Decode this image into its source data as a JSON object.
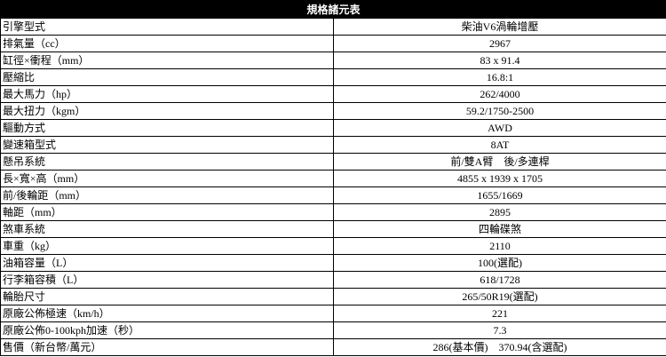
{
  "table": {
    "title": "規格諸元表",
    "rows": [
      [
        "引擎型式",
        "柴油V6渦輪增壓"
      ],
      [
        "排氣量（cc）",
        "2967"
      ],
      [
        "缸徑×衝程（mm）",
        "83 x 91.4"
      ],
      [
        "壓縮比",
        "16.8:1"
      ],
      [
        "最大馬力（hp）",
        "262/4000"
      ],
      [
        "最大扭力（kgm）",
        "59.2/1750-2500"
      ],
      [
        "驅動方式",
        "AWD"
      ],
      [
        "變速箱型式",
        "8AT"
      ],
      [
        "懸吊系統",
        "前/雙A臂　後/多連桿"
      ],
      [
        "長×寬×高（mm）",
        "4855 x 1939 x 1705"
      ],
      [
        "前/後輪距（mm）",
        "1655/1669"
      ],
      [
        "軸距（mm）",
        "2895"
      ],
      [
        "煞車系統",
        "四輪碟煞"
      ],
      [
        "車重（kg）",
        "2110"
      ],
      [
        "油箱容量（L）",
        "100(選配)"
      ],
      [
        "行李箱容積（L）",
        "618/1728"
      ],
      [
        "輪胎尺寸",
        "265/50R19(選配)"
      ],
      [
        "原廠公佈極速（km/h）",
        "221"
      ],
      [
        "原廠公佈0-100kph加速（秒）",
        "7.3"
      ],
      [
        "售價（新台幣/萬元）",
        "286(基本價)　370.94(含選配)"
      ]
    ]
  }
}
